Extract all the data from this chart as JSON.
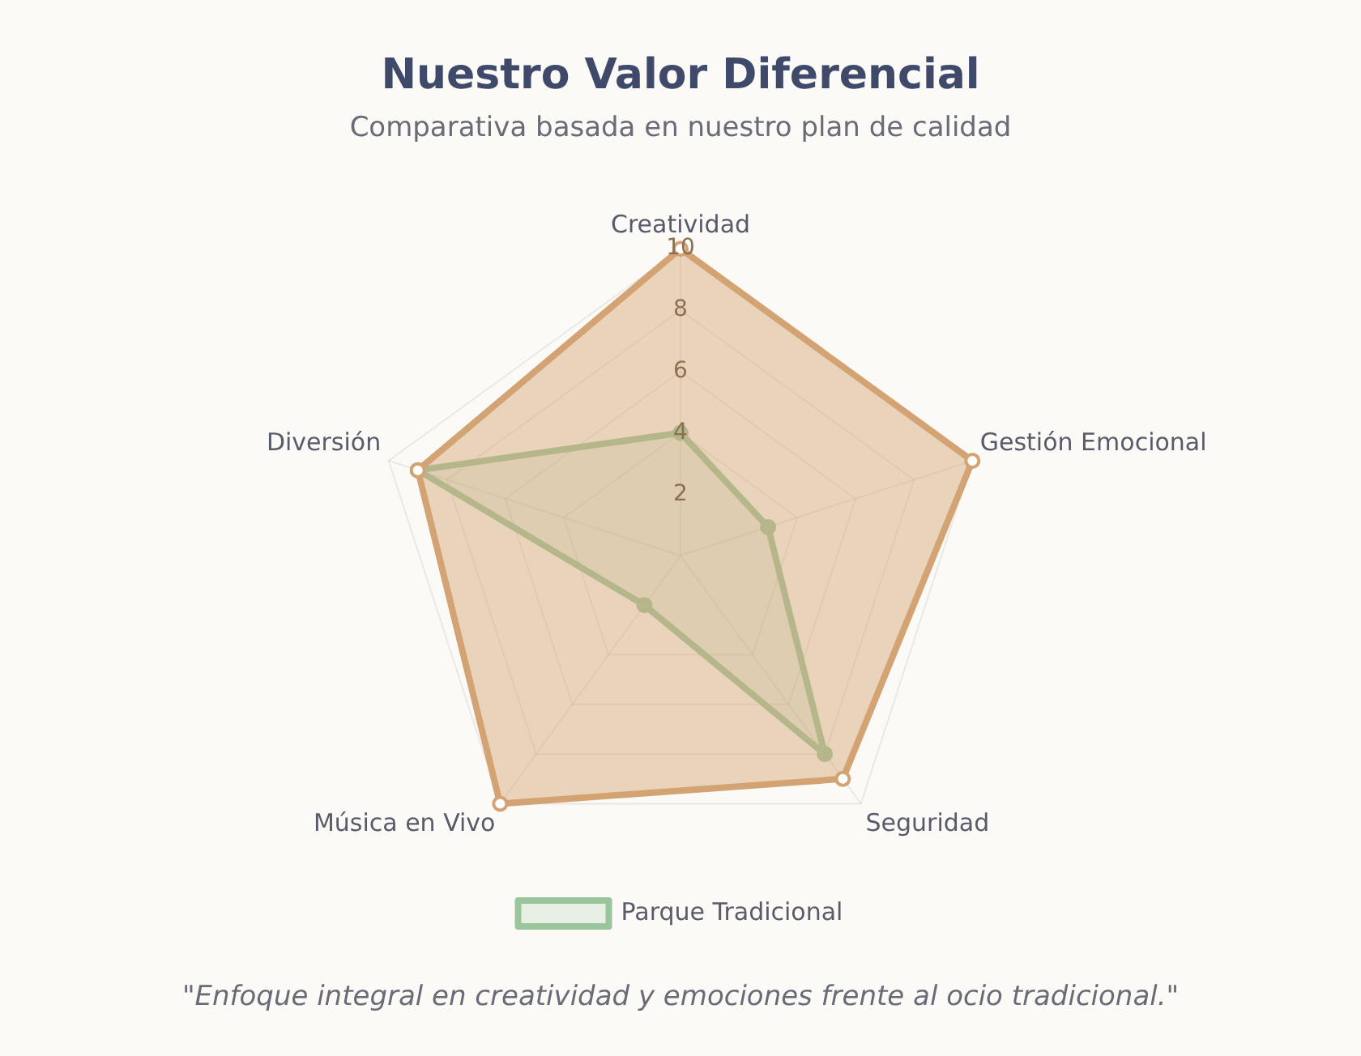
{
  "chart_data": {
    "type": "radar",
    "title": "Nuestro Valor Diferencial",
    "subtitle": "Comparativa basada en nuestro plan de calidad",
    "categories": [
      "Creatividad",
      "Gestión Emocional",
      "Seguridad",
      "Música en Vivo",
      "Diversión"
    ],
    "series": [
      {
        "color": "#d4a373",
        "values": [
          10,
          10,
          9,
          10,
          9
        ]
      },
      {
        "name": "Parque Tradicional",
        "color": "#9bc59d",
        "values": [
          4,
          3,
          8,
          2,
          9
        ]
      }
    ],
    "ylim": [
      0,
      10
    ],
    "yticks": [
      2,
      4,
      6,
      8,
      10
    ],
    "grid": true,
    "legend": "bottom",
    "marker": "circle",
    "line_style": "solid",
    "annotations": [
      "\"Enfoque integral en creatividad y emociones frente al ocio tradicional.\""
    ]
  }
}
